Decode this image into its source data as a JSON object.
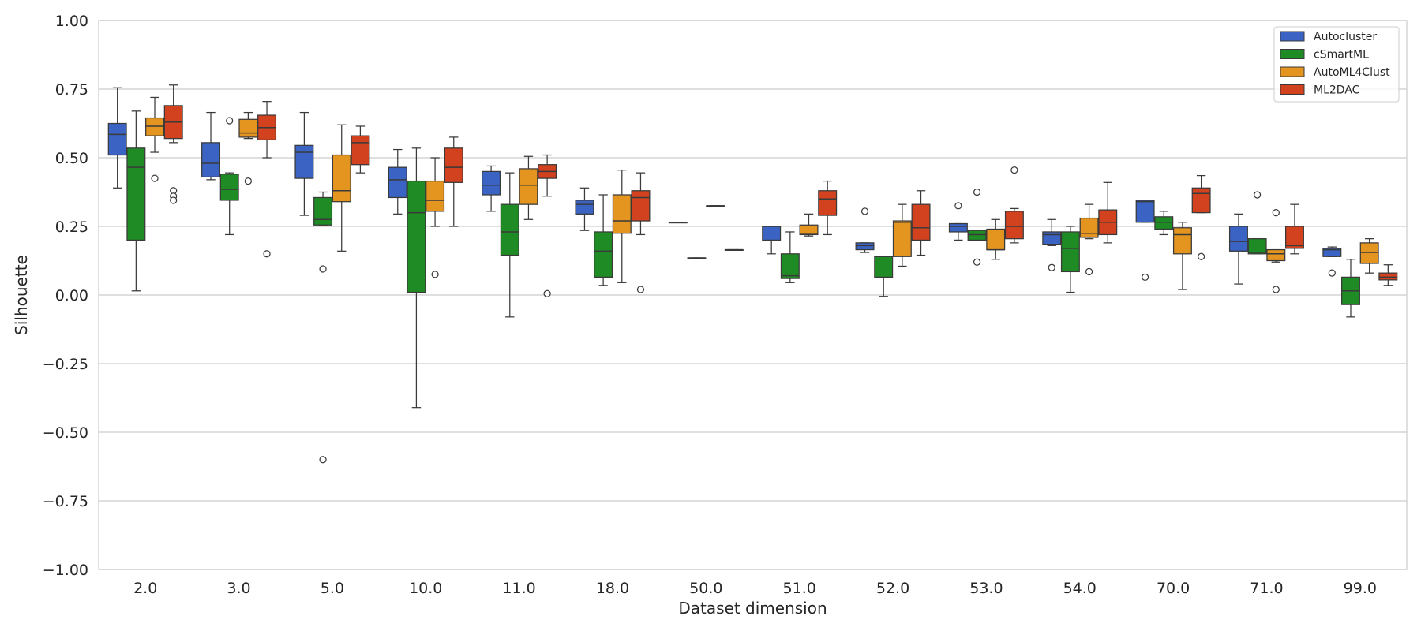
{
  "chart_data": {
    "type": "boxplot",
    "xlabel": "Dataset dimension",
    "ylabel": "Silhouette",
    "ylim": [
      -1.0,
      1.0
    ],
    "yticks": [
      "1.00",
      "0.75",
      "0.50",
      "0.25",
      "0.00",
      "−0.25",
      "−0.50",
      "−0.75",
      "−1.00"
    ],
    "ytick_values": [
      1.0,
      0.75,
      0.5,
      0.25,
      0.0,
      -0.25,
      -0.5,
      -0.75,
      -1.0
    ],
    "grid": true,
    "legend_position": "top-right",
    "categories": [
      "2.0",
      "3.0",
      "5.0",
      "10.0",
      "11.0",
      "18.0",
      "50.0",
      "51.0",
      "52.0",
      "53.0",
      "54.0",
      "70.0",
      "71.0",
      "99.0"
    ],
    "series": [
      {
        "name": "Autocluster",
        "color": "#3b63c4",
        "boxes": [
          {
            "min": 0.39,
            "q1": 0.51,
            "median": 0.585,
            "q3": 0.625,
            "max": 0.755,
            "outliers": []
          },
          {
            "min": 0.42,
            "q1": 0.43,
            "median": 0.48,
            "q3": 0.555,
            "max": 0.665,
            "outliers": []
          },
          {
            "min": 0.29,
            "q1": 0.425,
            "median": 0.52,
            "q3": 0.545,
            "max": 0.665,
            "outliers": []
          },
          {
            "min": 0.295,
            "q1": 0.355,
            "median": 0.42,
            "q3": 0.465,
            "max": 0.53,
            "outliers": []
          },
          {
            "min": 0.305,
            "q1": 0.365,
            "median": 0.4,
            "q3": 0.45,
            "max": 0.47,
            "outliers": []
          },
          {
            "min": 0.235,
            "q1": 0.295,
            "median": 0.33,
            "q3": 0.345,
            "max": 0.39,
            "outliers": []
          },
          {
            "min": 0.265,
            "q1": 0.265,
            "median": 0.265,
            "q3": 0.265,
            "max": 0.265,
            "outliers": []
          },
          {
            "min": 0.15,
            "q1": 0.2,
            "median": 0.25,
            "q3": 0.25,
            "max": 0.25,
            "outliers": []
          },
          {
            "min": 0.155,
            "q1": 0.165,
            "median": 0.18,
            "q3": 0.19,
            "max": 0.19,
            "outliers": [
              0.305
            ]
          },
          {
            "min": 0.2,
            "q1": 0.23,
            "median": 0.25,
            "q3": 0.26,
            "max": 0.26,
            "outliers": [
              0.325
            ]
          },
          {
            "min": 0.18,
            "q1": 0.185,
            "median": 0.22,
            "q3": 0.23,
            "max": 0.275,
            "outliers": [
              0.1
            ]
          },
          {
            "min": 0.265,
            "q1": 0.265,
            "median": 0.34,
            "q3": 0.345,
            "max": 0.345,
            "outliers": [
              0.065
            ]
          },
          {
            "min": 0.04,
            "q1": 0.16,
            "median": 0.195,
            "q3": 0.25,
            "max": 0.295,
            "outliers": []
          },
          {
            "min": 0.14,
            "q1": 0.14,
            "median": 0.165,
            "q3": 0.17,
            "max": 0.175,
            "outliers": [
              0.08
            ]
          }
        ]
      },
      {
        "name": "cSmartML",
        "color": "#1f8b24",
        "boxes": [
          {
            "min": 0.015,
            "q1": 0.2,
            "median": 0.465,
            "q3": 0.535,
            "max": 0.67,
            "outliers": []
          },
          {
            "min": 0.22,
            "q1": 0.345,
            "median": 0.385,
            "q3": 0.44,
            "max": 0.445,
            "outliers": [
              0.635
            ]
          },
          {
            "min": 0.255,
            "q1": 0.255,
            "median": 0.275,
            "q3": 0.355,
            "max": 0.375,
            "outliers": [
              0.095,
              -0.6
            ]
          },
          {
            "min": -0.41,
            "q1": 0.01,
            "median": 0.3,
            "q3": 0.415,
            "max": 0.535,
            "outliers": []
          },
          {
            "min": -0.08,
            "q1": 0.145,
            "median": 0.23,
            "q3": 0.33,
            "max": 0.445,
            "outliers": []
          },
          {
            "min": 0.035,
            "q1": 0.065,
            "median": 0.16,
            "q3": 0.23,
            "max": 0.365,
            "outliers": []
          },
          {
            "min": 0.135,
            "q1": 0.135,
            "median": 0.135,
            "q3": 0.135,
            "max": 0.135,
            "outliers": []
          },
          {
            "min": 0.045,
            "q1": 0.06,
            "median": 0.07,
            "q3": 0.15,
            "max": 0.23,
            "outliers": []
          },
          {
            "min": -0.005,
            "q1": 0.065,
            "median": 0.14,
            "q3": 0.14,
            "max": 0.14,
            "outliers": []
          },
          {
            "min": 0.2,
            "q1": 0.2,
            "median": 0.22,
            "q3": 0.235,
            "max": 0.235,
            "outliers": [
              0.12,
              0.375
            ]
          },
          {
            "min": 0.01,
            "q1": 0.085,
            "median": 0.17,
            "q3": 0.23,
            "max": 0.25,
            "outliers": []
          },
          {
            "min": 0.22,
            "q1": 0.24,
            "median": 0.265,
            "q3": 0.285,
            "max": 0.305,
            "outliers": []
          },
          {
            "min": 0.15,
            "q1": 0.15,
            "median": 0.155,
            "q3": 0.205,
            "max": 0.205,
            "outliers": [
              0.365
            ]
          },
          {
            "min": -0.08,
            "q1": -0.035,
            "median": 0.015,
            "q3": 0.065,
            "max": 0.13,
            "outliers": []
          }
        ]
      },
      {
        "name": "AutoML4Clust",
        "color": "#e39520",
        "boxes": [
          {
            "min": 0.52,
            "q1": 0.58,
            "median": 0.615,
            "q3": 0.645,
            "max": 0.72,
            "outliers": [
              0.425
            ]
          },
          {
            "min": 0.57,
            "q1": 0.575,
            "median": 0.59,
            "q3": 0.64,
            "max": 0.665,
            "outliers": [
              0.415
            ]
          },
          {
            "min": 0.16,
            "q1": 0.34,
            "median": 0.38,
            "q3": 0.51,
            "max": 0.62,
            "outliers": []
          },
          {
            "min": 0.25,
            "q1": 0.305,
            "median": 0.345,
            "q3": 0.415,
            "max": 0.5,
            "outliers": [
              0.075
            ]
          },
          {
            "min": 0.275,
            "q1": 0.33,
            "median": 0.4,
            "q3": 0.46,
            "max": 0.505,
            "outliers": []
          },
          {
            "min": 0.045,
            "q1": 0.225,
            "median": 0.27,
            "q3": 0.365,
            "max": 0.455,
            "outliers": []
          },
          {
            "min": 0.325,
            "q1": 0.325,
            "median": 0.325,
            "q3": 0.325,
            "max": 0.325,
            "outliers": []
          },
          {
            "min": 0.215,
            "q1": 0.22,
            "median": 0.225,
            "q3": 0.255,
            "max": 0.295,
            "outliers": []
          },
          {
            "min": 0.105,
            "q1": 0.14,
            "median": 0.265,
            "q3": 0.27,
            "max": 0.33,
            "outliers": []
          },
          {
            "min": 0.13,
            "q1": 0.165,
            "median": 0.165,
            "q3": 0.24,
            "max": 0.275,
            "outliers": []
          },
          {
            "min": 0.205,
            "q1": 0.21,
            "median": 0.225,
            "q3": 0.28,
            "max": 0.33,
            "outliers": [
              0.085
            ]
          },
          {
            "min": 0.02,
            "q1": 0.15,
            "median": 0.22,
            "q3": 0.245,
            "max": 0.265,
            "outliers": []
          },
          {
            "min": 0.12,
            "q1": 0.125,
            "median": 0.15,
            "q3": 0.165,
            "max": 0.165,
            "outliers": [
              0.3,
              0.02
            ]
          },
          {
            "min": 0.08,
            "q1": 0.115,
            "median": 0.155,
            "q3": 0.19,
            "max": 0.205,
            "outliers": []
          }
        ]
      },
      {
        "name": "ML2DAC",
        "color": "#d2421f",
        "boxes": [
          {
            "min": 0.555,
            "q1": 0.57,
            "median": 0.63,
            "q3": 0.69,
            "max": 0.765,
            "outliers": [
              0.38,
              0.36,
              0.345
            ]
          },
          {
            "min": 0.5,
            "q1": 0.565,
            "median": 0.61,
            "q3": 0.655,
            "max": 0.705,
            "outliers": [
              0.15
            ]
          },
          {
            "min": 0.445,
            "q1": 0.475,
            "median": 0.555,
            "q3": 0.58,
            "max": 0.615,
            "outliers": []
          },
          {
            "min": 0.25,
            "q1": 0.41,
            "median": 0.465,
            "q3": 0.535,
            "max": 0.575,
            "outliers": []
          },
          {
            "min": 0.36,
            "q1": 0.425,
            "median": 0.45,
            "q3": 0.475,
            "max": 0.51,
            "outliers": [
              0.005
            ]
          },
          {
            "min": 0.22,
            "q1": 0.27,
            "median": 0.355,
            "q3": 0.38,
            "max": 0.445,
            "outliers": [
              0.02
            ]
          },
          {
            "min": 0.165,
            "q1": 0.165,
            "median": 0.165,
            "q3": 0.165,
            "max": 0.165,
            "outliers": []
          },
          {
            "min": 0.22,
            "q1": 0.29,
            "median": 0.35,
            "q3": 0.38,
            "max": 0.415,
            "outliers": []
          },
          {
            "min": 0.145,
            "q1": 0.2,
            "median": 0.245,
            "q3": 0.33,
            "max": 0.38,
            "outliers": []
          },
          {
            "min": 0.19,
            "q1": 0.205,
            "median": 0.25,
            "q3": 0.305,
            "max": 0.315,
            "outliers": [
              0.455
            ]
          },
          {
            "min": 0.19,
            "q1": 0.22,
            "median": 0.265,
            "q3": 0.31,
            "max": 0.41,
            "outliers": []
          },
          {
            "min": 0.3,
            "q1": 0.3,
            "median": 0.37,
            "q3": 0.39,
            "max": 0.435,
            "outliers": [
              0.14
            ]
          },
          {
            "min": 0.15,
            "q1": 0.17,
            "median": 0.18,
            "q3": 0.25,
            "max": 0.33,
            "outliers": []
          },
          {
            "min": 0.035,
            "q1": 0.055,
            "median": 0.065,
            "q3": 0.08,
            "max": 0.11,
            "outliers": []
          }
        ]
      }
    ]
  }
}
